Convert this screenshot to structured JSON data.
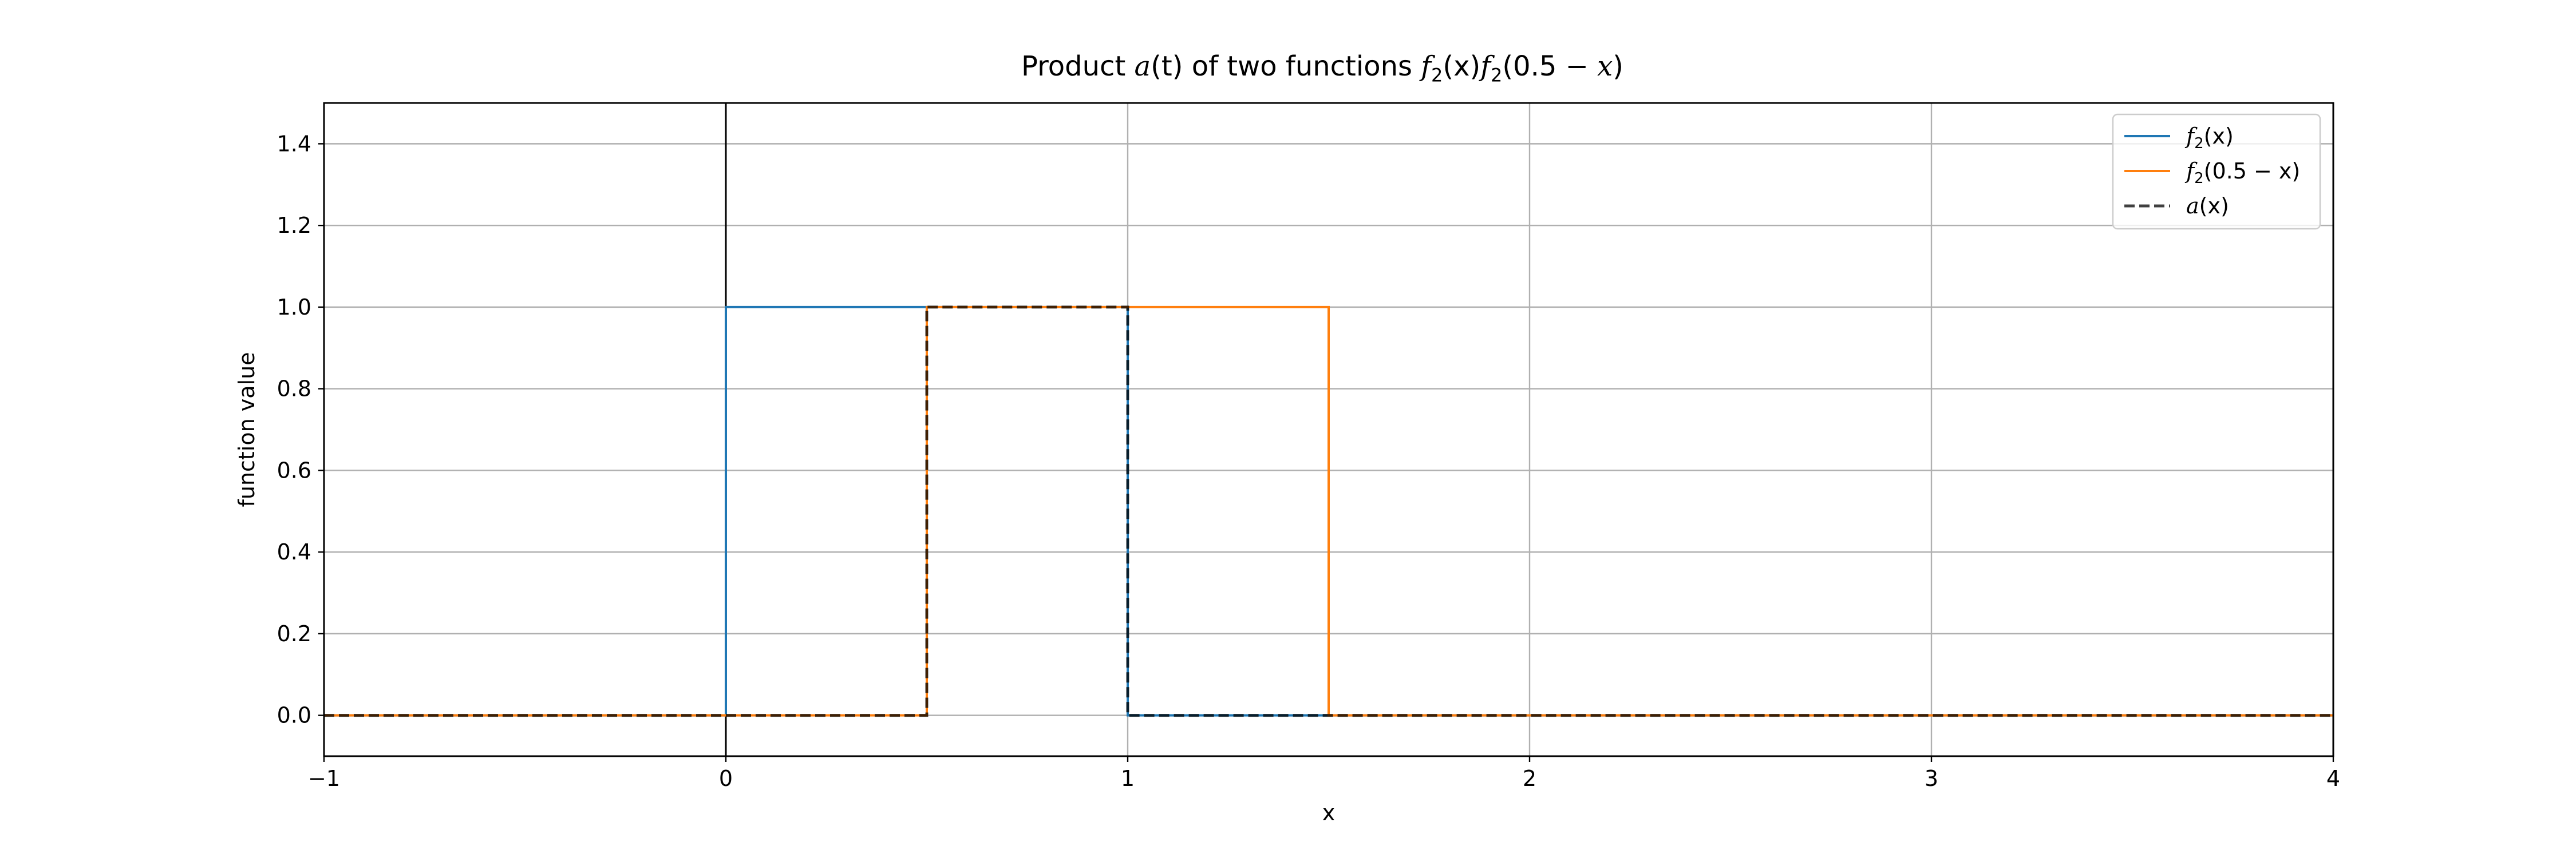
{
  "chart_data": {
    "type": "line",
    "title": "Product a(t) of two functions f2(x)f2(0.5 − x)",
    "xlabel": "x",
    "ylabel": "function value",
    "xlim": [
      -1,
      4
    ],
    "ylim": [
      -0.1,
      1.5
    ],
    "xticks": [
      -1,
      0,
      1,
      2,
      3,
      4
    ],
    "xtick_labels": [
      "−1",
      "0",
      "1",
      "2",
      "3",
      "4"
    ],
    "yticks": [
      0.0,
      0.2,
      0.4,
      0.6,
      0.8,
      1.0,
      1.2,
      1.4
    ],
    "ytick_labels": [
      "0.0",
      "0.2",
      "0.4",
      "0.6",
      "0.8",
      "1.0",
      "1.2",
      "1.4"
    ],
    "grid": true,
    "legend_position": "top-right",
    "reference_lines": [
      {
        "axis": "x",
        "value": 0,
        "color": "#000000"
      }
    ],
    "series": [
      {
        "name": "f2(x)",
        "color": "#1f77b4",
        "style": "solid",
        "x": [
          -1,
          0,
          0,
          1,
          1,
          4
        ],
        "y": [
          0,
          0,
          1,
          1,
          0,
          0
        ]
      },
      {
        "name": "f2(0.5 − x)",
        "color": "#ff7f0e",
        "style": "solid",
        "x": [
          -1,
          0.5,
          0.5,
          1.5,
          1.5,
          4
        ],
        "y": [
          0,
          0,
          1,
          1,
          0,
          0
        ]
      },
      {
        "name": "a(x)",
        "color": "#000000",
        "style": "dashed",
        "x": [
          -1,
          0.5,
          0.5,
          1,
          1,
          4
        ],
        "y": [
          0,
          0,
          1,
          1,
          0,
          0
        ]
      }
    ]
  },
  "title_parts": {
    "prefix": "Product ",
    "a_fn": "a",
    "a_arg": "(t)",
    "middle": " of two functions ",
    "f": "f",
    "sub": "2",
    "arg1": "(x)",
    "arg2_open": "(0.5 − ",
    "arg2_var": "x",
    "arg2_close": ")"
  },
  "legend_labels": [
    {
      "fn": "f",
      "sub": "2",
      "arg": "(x)"
    },
    {
      "fn": "f",
      "sub": "2",
      "arg": "(0.5 − x)"
    },
    {
      "fn": "a",
      "sub": "",
      "arg": "(x)"
    }
  ]
}
